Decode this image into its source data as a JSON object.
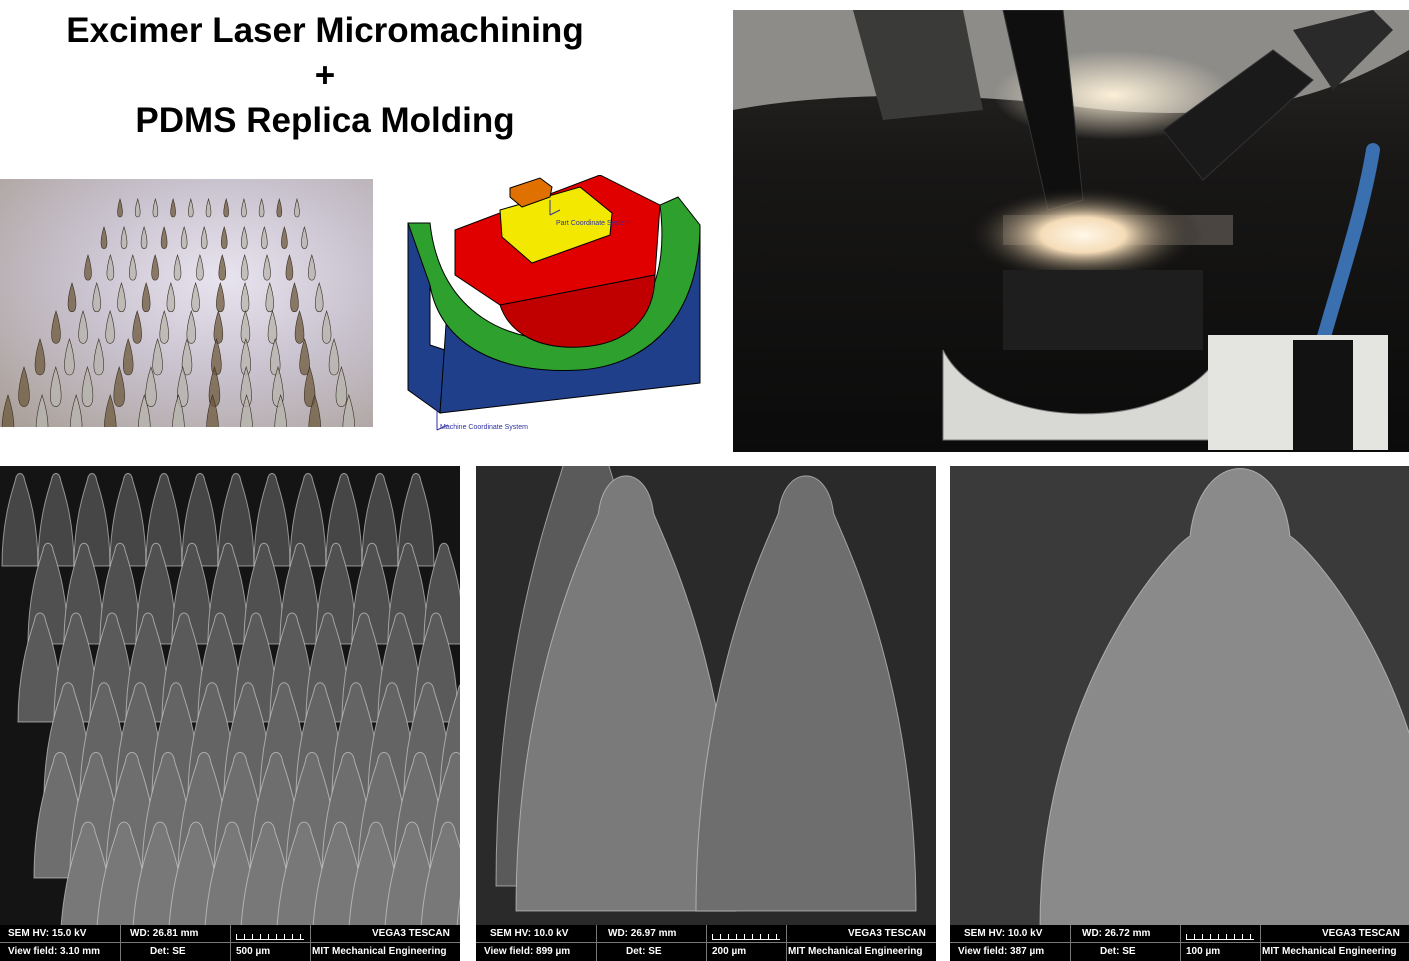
{
  "title": {
    "line1": "Excimer Laser Micromachining",
    "line2": "+",
    "line3": "PDMS Replica Molding"
  },
  "cad": {
    "part_cs_label": "Part Coordinate System",
    "machine_cs_label": "Machine Coordinate System",
    "colors": {
      "base": "#1f3f8a",
      "cradle": "#2ea02e",
      "block": "#e00000",
      "top_plate": "#f2e800",
      "nub": "#e07000"
    }
  },
  "sem_panels": [
    {
      "hv": "SEM HV: 15.0 kV",
      "wd": "WD: 26.81 mm",
      "instrument": "VEGA3 TESCAN",
      "view_field": "View field: 3.10 mm",
      "detector": "Det: SE",
      "scale": "500 µm",
      "lab": "MIT Mechanical Engineering"
    },
    {
      "hv": "SEM HV: 10.0 kV",
      "wd": "WD: 26.97 mm",
      "instrument": "VEGA3 TESCAN",
      "view_field": "View field: 899 µm",
      "detector": "Det: SE",
      "scale": "200 µm",
      "lab": "MIT Mechanical Engineering"
    },
    {
      "hv": "SEM HV: 10.0 kV",
      "wd": "WD: 26.72 mm",
      "instrument": "VEGA3 TESCAN",
      "view_field": "View field: 387 µm",
      "detector": "Det: SE",
      "scale": "100 µm",
      "lab": "MIT Mechanical Engineering"
    }
  ]
}
